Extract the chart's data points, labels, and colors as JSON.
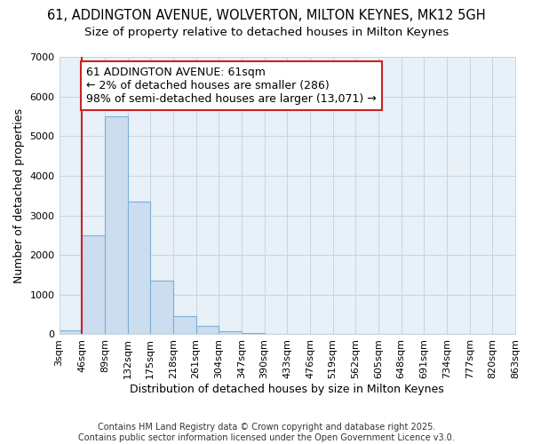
{
  "title_line1": "61, ADDINGTON AVENUE, WOLVERTON, MILTON KEYNES, MK12 5GH",
  "title_line2": "Size of property relative to detached houses in Milton Keynes",
  "xlabel": "Distribution of detached houses by size in Milton Keynes",
  "ylabel": "Number of detached properties",
  "bar_values": [
    100,
    2500,
    5500,
    3350,
    1350,
    450,
    220,
    80,
    40,
    0,
    0,
    0,
    0,
    0,
    0,
    0,
    0,
    0,
    0,
    0
  ],
  "bin_labels": [
    "3sqm",
    "46sqm",
    "89sqm",
    "132sqm",
    "175sqm",
    "218sqm",
    "261sqm",
    "304sqm",
    "347sqm",
    "390sqm",
    "433sqm",
    "476sqm",
    "519sqm",
    "562sqm",
    "605sqm",
    "648sqm",
    "691sqm",
    "734sqm",
    "777sqm",
    "820sqm",
    "863sqm"
  ],
  "bar_color": "#ccddf0",
  "bar_edge_color": "#7ab0d8",
  "plot_bg_color": "#e8f0f8",
  "fig_bg_color": "#ffffff",
  "grid_color": "#c8d4e0",
  "vline_x": 1,
  "vline_color": "#cc2222",
  "annotation_text_line1": "61 ADDINGTON AVENUE: 61sqm",
  "annotation_text_line2": "← 2% of detached houses are smaller (286)",
  "annotation_text_line3": "98% of semi-detached houses are larger (13,071) →",
  "annotation_box_color": "#ffffff",
  "annotation_box_edge": "#cc2222",
  "ylim": [
    0,
    7000
  ],
  "yticks": [
    0,
    1000,
    2000,
    3000,
    4000,
    5000,
    6000,
    7000
  ],
  "footer_text": "Contains HM Land Registry data © Crown copyright and database right 2025.\nContains public sector information licensed under the Open Government Licence v3.0.",
  "title_fontsize": 10.5,
  "subtitle_fontsize": 9.5,
  "xlabel_fontsize": 9,
  "ylabel_fontsize": 9,
  "tick_fontsize": 8,
  "annotation_fontsize": 9,
  "footer_fontsize": 7
}
